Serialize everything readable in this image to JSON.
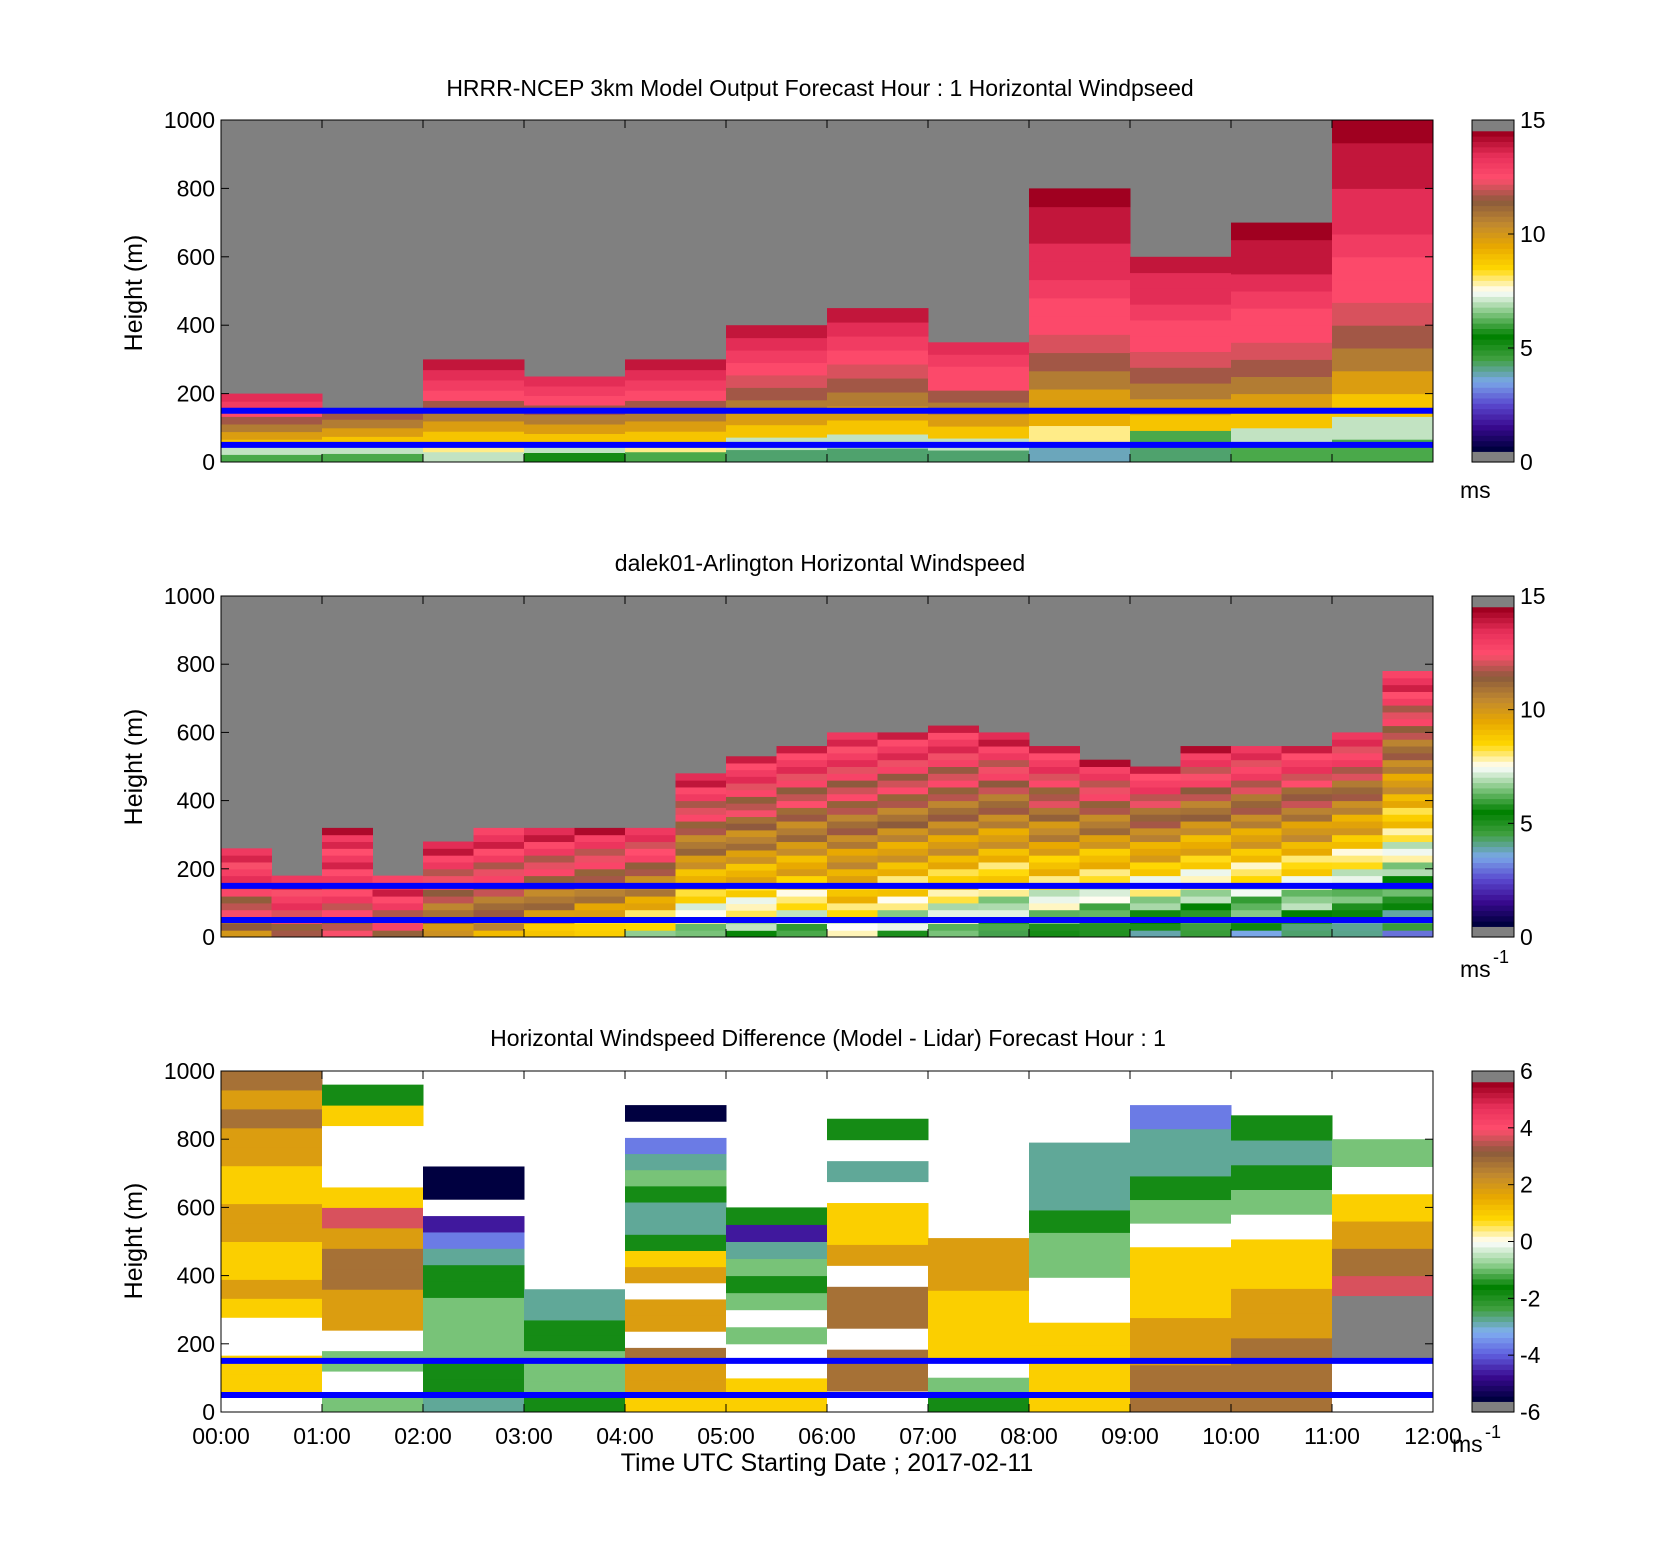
{
  "figure": {
    "xlabel": "Time UTC  Starting Date ; 2017-02-11",
    "x_tick_labels": [
      "00:00",
      "01:00",
      "02:00",
      "03:00",
      "04:00",
      "05:00",
      "06:00",
      "07:00",
      "08:00",
      "09:00",
      "10:00",
      "11:00",
      "12:00"
    ]
  },
  "colors": {
    "missing": "#808080",
    "no_data": "#ffffff",
    "overlay_lines": "#0000ff",
    "speed_colormap": [
      "#808080",
      "#000040",
      "#3a0a90",
      "#5a4ad0",
      "#7aa8e8",
      "#40a040",
      "#008000",
      "#7cc47c",
      "#ffffff",
      "#ffd700",
      "#e8a800",
      "#c08830",
      "#8b5a3c",
      "#ff4d6d",
      "#e8305a",
      "#a00020",
      "#808080"
    ],
    "diff_colormap": [
      "#808080",
      "#000040",
      "#3a0a90",
      "#6060e0",
      "#80b0f0",
      "#40a040",
      "#008000",
      "#90d090",
      "#ffffff",
      "#ffd700",
      "#e8a800",
      "#c08830",
      "#8b5a3c",
      "#ff4d6d",
      "#e8305a",
      "#a00020",
      "#808080"
    ]
  },
  "chart_data": [
    {
      "type": "heatmap",
      "title": "HRRR-NCEP 3km Model Output   Forecast Hour : 1 Horizontal Windpseed",
      "ylabel": "Height (m)",
      "xlim": [
        "00:00",
        "12:00"
      ],
      "ylim": [
        0,
        1000
      ],
      "y_ticks": [
        0,
        200,
        400,
        600,
        800,
        1000
      ],
      "colorbar": {
        "range": [
          0,
          15
        ],
        "ticks": [
          0,
          5,
          10,
          15
        ],
        "label": "ms",
        "exponent": ""
      },
      "overlay_lines_height_m": [
        50,
        150
      ],
      "hourly_top_of_data_m": [
        200,
        150,
        300,
        250,
        300,
        400,
        450,
        350,
        800,
        600,
        700,
        1000
      ],
      "hourly_speed_ms": [
        [
          6,
          7,
          9,
          10,
          11,
          12,
          13,
          13.5,
          14
        ],
        [
          6,
          7,
          9,
          10,
          11,
          12
        ],
        [
          7,
          8,
          9,
          10,
          11,
          12,
          13,
          13.5,
          14,
          14.5
        ],
        [
          5,
          7,
          9,
          10,
          11,
          12,
          13,
          13.5,
          14
        ],
        [
          6,
          8,
          9,
          10,
          11,
          12,
          13,
          13.5,
          14,
          14.5
        ],
        [
          4,
          7,
          9,
          10,
          11,
          12,
          12.5,
          13,
          13.5,
          14,
          14.5
        ],
        [
          4,
          7,
          9,
          10,
          11,
          12,
          12.5,
          13,
          13.5,
          14,
          14.5
        ],
        [
          4,
          7,
          9,
          10,
          11,
          12,
          13,
          13,
          13.5,
          14
        ],
        [
          3.5,
          8,
          9.5,
          10,
          11,
          12,
          12.5,
          13,
          13,
          13.5,
          14,
          14,
          14.5,
          14.5,
          15
        ],
        [
          4,
          6,
          9,
          10,
          11,
          12,
          12.5,
          13,
          13,
          13.5,
          14,
          14,
          14.5
        ],
        [
          6,
          7,
          9,
          10,
          11,
          12,
          12.5,
          13,
          13,
          13.5,
          14,
          14.5,
          14.5,
          15
        ],
        [
          6,
          7,
          9,
          10,
          11,
          12,
          12.5,
          13,
          13,
          13.5,
          14,
          14,
          14.5,
          14.5,
          15
        ]
      ]
    },
    {
      "type": "heatmap",
      "title": "dalek01-Arlington  Horizontal Windspeed",
      "ylabel": "Height (m)",
      "xlim": [
        "00:00",
        "12:00"
      ],
      "ylim": [
        0,
        1000
      ],
      "y_ticks": [
        0,
        200,
        400,
        600,
        800,
        1000
      ],
      "colorbar": {
        "range": [
          0,
          15
        ],
        "ticks": [
          0,
          5,
          10,
          15
        ],
        "label": "ms",
        "exponent": "-1"
      },
      "overlay_lines_height_m": [
        50,
        150
      ],
      "half_hour_top_of_data_m": [
        260,
        180,
        320,
        180,
        280,
        320,
        320,
        320,
        320,
        480,
        530,
        560,
        600,
        600,
        620,
        600,
        560,
        520,
        500,
        560,
        560,
        560,
        600,
        780
      ],
      "half_hour_near_surface_speed_ms": [
        11,
        12,
        12,
        12,
        10,
        10,
        9,
        8,
        7,
        6,
        6,
        6,
        7,
        6,
        6,
        5,
        5,
        4,
        4,
        4,
        4,
        4,
        3,
        3
      ],
      "half_hour_top_speed_ms": [
        14,
        14,
        14,
        14,
        14,
        14,
        14,
        14,
        14,
        14,
        14,
        14,
        14,
        14,
        14,
        14,
        14,
        14,
        14,
        14,
        14,
        14,
        14,
        14
      ]
    },
    {
      "type": "heatmap",
      "title": "Horizontal Windspeed Difference (Model - Lidar) Forecast Hour : 1",
      "ylabel": "Height (m)",
      "xlim": [
        "00:00",
        "12:00"
      ],
      "ylim": [
        0,
        1000
      ],
      "y_ticks": [
        0,
        200,
        400,
        600,
        800,
        1000
      ],
      "colorbar": {
        "range": [
          -6,
          6
        ],
        "ticks": [
          -6,
          -4,
          -2,
          0,
          2,
          4,
          6
        ],
        "label": "ms",
        "exponent": "-1"
      },
      "overlay_lines_height_m": [
        50,
        150
      ],
      "hourly_segments": [
        {
          "hour": 0,
          "from_m": 0,
          "to_m": 1000,
          "values": [
            0,
            1,
            1,
            0,
            0,
            1,
            2,
            1,
            1,
            2,
            2,
            1,
            1,
            2,
            2,
            3,
            2,
            3
          ]
        },
        {
          "hour": 1,
          "from_m": 0,
          "to_m": 960,
          "values": [
            -1,
            0,
            -1,
            0,
            2,
            2,
            3,
            3,
            2,
            4,
            1,
            -9,
            -9,
            -9,
            1,
            -2
          ]
        },
        {
          "hour": 2,
          "from_m": 0,
          "to_m": 720,
          "values": [
            -3,
            -2,
            -2,
            -1,
            -1,
            -1,
            -1,
            -2,
            -2,
            -3,
            -4,
            -5,
            -9,
            -6,
            -6
          ]
        },
        {
          "hour": 3,
          "from_m": 0,
          "to_m": 360,
          "values": [
            -2,
            -1,
            -1,
            -1,
            -2,
            -2,
            -3,
            -3
          ]
        },
        {
          "hour": 4,
          "from_m": 0,
          "to_m": 900,
          "values": [
            1,
            2,
            2,
            3,
            -9,
            2,
            2,
            -9,
            2,
            1,
            -2,
            -3,
            -3,
            -2,
            -1,
            -3,
            -4,
            -9,
            -6
          ]
        },
        {
          "hour": 5,
          "from_m": 0,
          "to_m": 600,
          "values": [
            1,
            1,
            -9,
            -9,
            -1,
            0,
            -1,
            -2,
            -1,
            -3,
            -5,
            -2
          ]
        },
        {
          "hour": 6,
          "from_m": 0,
          "to_m": 860,
          "values": [
            -9,
            3,
            3,
            -9,
            3,
            3,
            -9,
            2,
            1,
            1,
            -9,
            -3,
            -9,
            -2
          ]
        },
        {
          "hour": 7,
          "from_m": 0,
          "to_m": 510,
          "values": [
            -2,
            -1,
            0,
            1,
            1,
            1,
            1,
            2,
            2,
            2
          ]
        },
        {
          "hour": 8,
          "from_m": 0,
          "to_m": 790,
          "values": [
            1,
            1,
            1,
            1,
            0,
            0,
            -1,
            -1,
            -2,
            -3,
            -3,
            -3
          ]
        },
        {
          "hour": 9,
          "from_m": 0,
          "to_m": 900,
          "values": [
            3,
            3,
            2,
            2,
            1,
            1,
            1,
            0,
            -1,
            -2,
            -3,
            -3,
            -4
          ]
        },
        {
          "hour": 10,
          "from_m": 0,
          "to_m": 870,
          "values": [
            3,
            3,
            3,
            2,
            2,
            1,
            1,
            0,
            -1,
            -2,
            -3,
            -2
          ]
        },
        {
          "hour": 11,
          "from_m": 0,
          "to_m": 800,
          "values": [
            -9,
            -9,
            4,
            4,
            4,
            3,
            2,
            1,
            0,
            -1
          ]
        }
      ]
    }
  ]
}
